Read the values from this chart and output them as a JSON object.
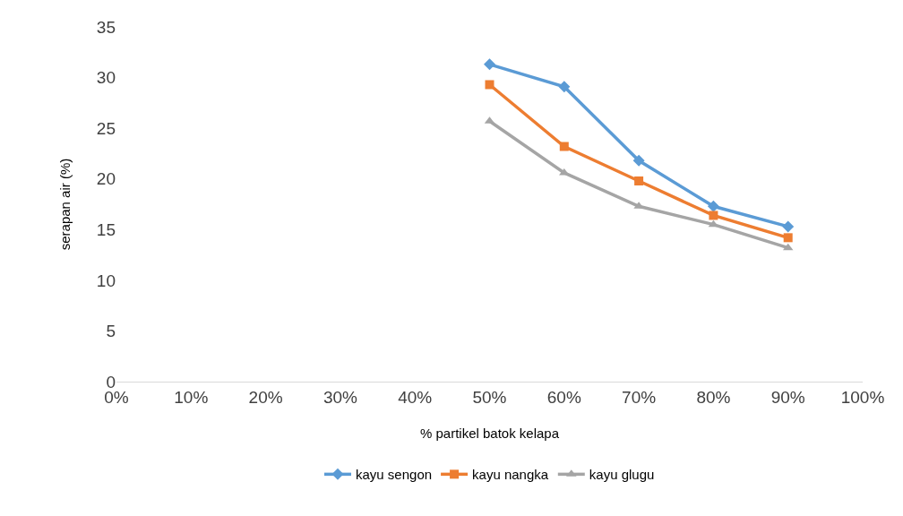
{
  "chart_data": {
    "type": "line",
    "xlabel": "% partikel batok kelapa",
    "ylabel": "serapan air (%)",
    "x": [
      0.5,
      0.6,
      0.7,
      0.8,
      0.9
    ],
    "xlim": [
      0,
      1
    ],
    "xticks": [
      {
        "value": 0,
        "label": "0%"
      },
      {
        "value": 0.1,
        "label": "10%"
      },
      {
        "value": 0.2,
        "label": "20%"
      },
      {
        "value": 0.3,
        "label": "30%"
      },
      {
        "value": 0.4,
        "label": "40%"
      },
      {
        "value": 0.5,
        "label": "50%"
      },
      {
        "value": 0.6,
        "label": "60%"
      },
      {
        "value": 0.7,
        "label": "70%"
      },
      {
        "value": 0.8,
        "label": "80%"
      },
      {
        "value": 0.9,
        "label": "90%"
      },
      {
        "value": 1,
        "label": "100%"
      }
    ],
    "ylim": [
      0,
      35
    ],
    "yticks": [
      0,
      5,
      10,
      15,
      20,
      25,
      30,
      35
    ],
    "grid": false,
    "legend": "bottom",
    "line_style": "solid",
    "series": [
      {
        "name": "kayu sengon",
        "color": "#5b9bd5",
        "marker": "diamond",
        "values": [
          31.3,
          29.1,
          21.8,
          17.3,
          15.3
        ]
      },
      {
        "name": "kayu nangka",
        "color": "#ed7d31",
        "marker": "square",
        "values": [
          29.3,
          23.2,
          19.8,
          16.4,
          14.2
        ]
      },
      {
        "name": "kayu glugu",
        "color": "#a5a5a5",
        "marker": "triangle",
        "values": [
          25.7,
          20.6,
          17.3,
          15.5,
          13.2
        ]
      }
    ]
  }
}
